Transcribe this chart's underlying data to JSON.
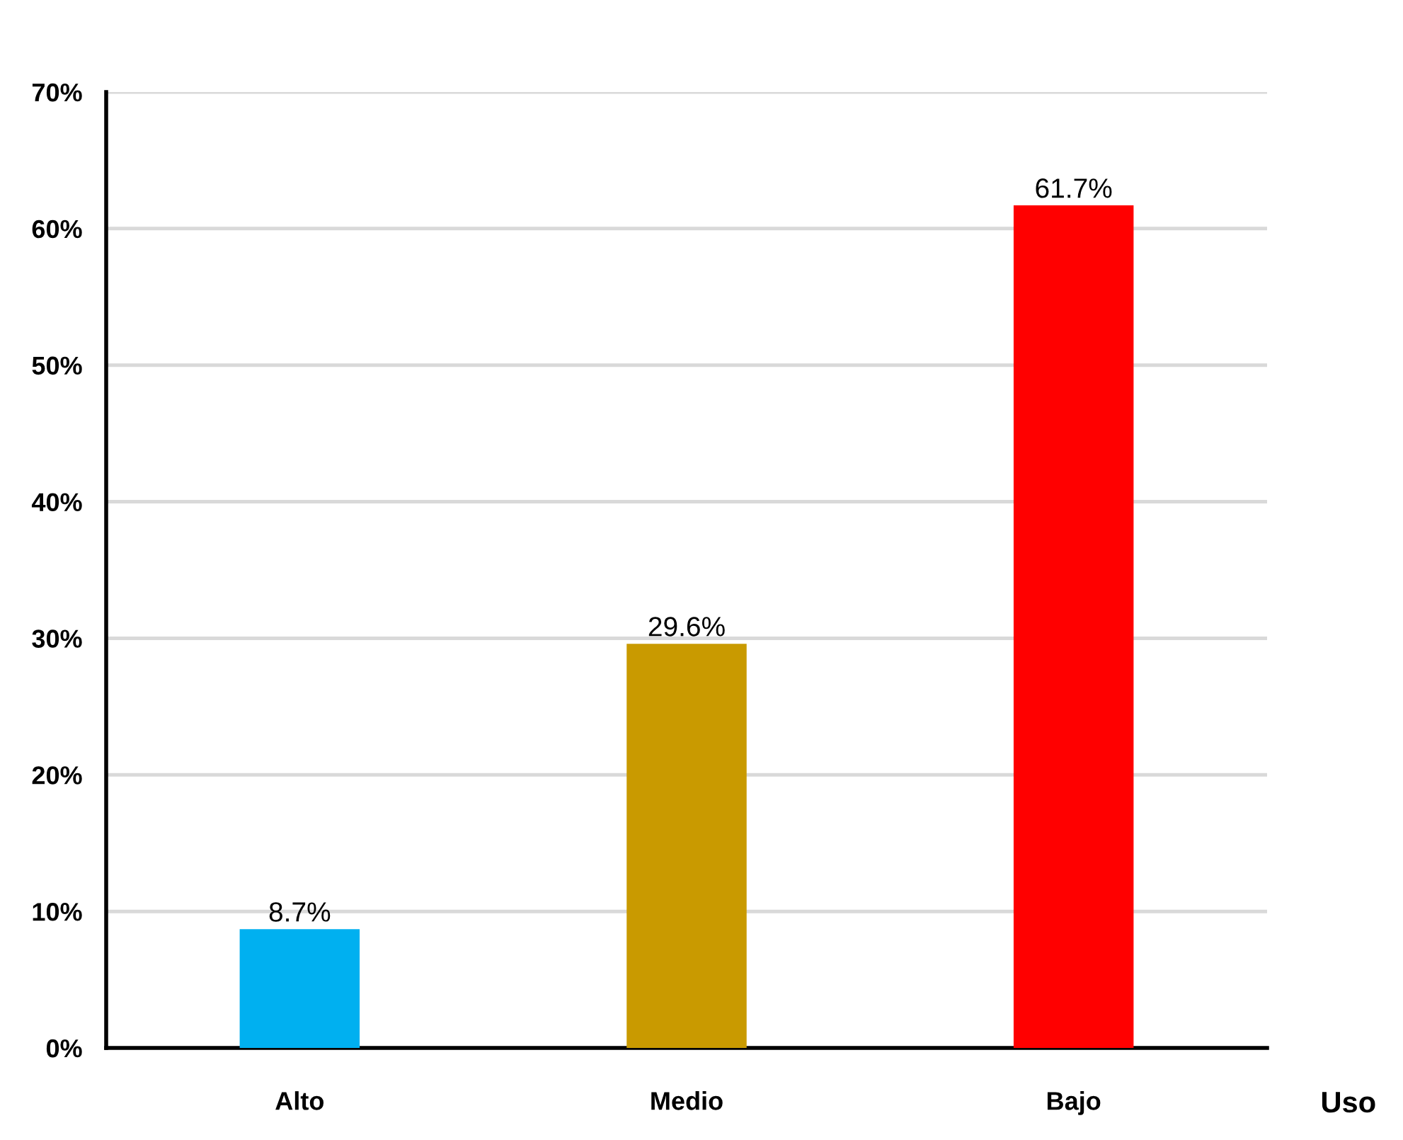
{
  "chart_data": {
    "type": "bar",
    "xlabel": "Uso",
    "categories": [
      "Alto",
      "Medio",
      "Bajo"
    ],
    "values": [
      8.7,
      29.6,
      61.7
    ],
    "colors": [
      "#00b0f0",
      "#c99a00",
      "#ff0000"
    ],
    "value_labels": [
      "8.7%",
      "29.6%",
      "61.7%"
    ],
    "ylim": [
      0,
      70
    ],
    "yticks": [
      {
        "value": 0,
        "label": "0%"
      },
      {
        "value": 10,
        "label": "10%"
      },
      {
        "value": 20,
        "label": "20%"
      },
      {
        "value": 30,
        "label": "30%"
      },
      {
        "value": 40,
        "label": "40%"
      },
      {
        "value": 50,
        "label": "50%"
      },
      {
        "value": 60,
        "label": "60%"
      },
      {
        "value": 70,
        "label": "70%"
      }
    ],
    "grid": "y"
  }
}
